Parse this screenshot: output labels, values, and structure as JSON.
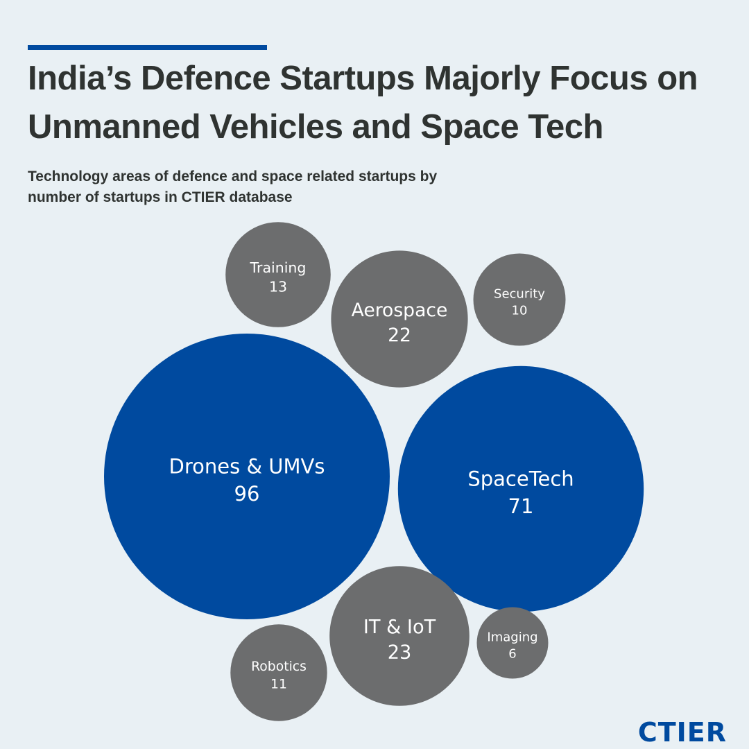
{
  "header": {
    "title_line1": "India’s Defence Startups Majorly Focus on",
    "title_line2": "Unmanned Vehicles and Space Tech",
    "subtitle_line1": "Technology areas of defence and space related startups by",
    "subtitle_line2": "number of startups in CTIER database"
  },
  "colors": {
    "background": "#e9f0f4",
    "accent": "#004a9f",
    "neutral_bubble": "#6c6d6e",
    "text_dark": "#2f3331"
  },
  "chart_data": {
    "type": "bubble",
    "title": "India’s Defence Startups Majorly Focus on Unmanned Vehicles and Space Tech",
    "subtitle": "Technology areas of defence and space related startups by number of startups in CTIER database",
    "unit": "number of startups",
    "categories": [
      "Training",
      "Aerospace",
      "Security",
      "Drones & UMVs",
      "SpaceTech",
      "IT & IoT",
      "Imaging",
      "Robotics"
    ],
    "values": [
      13,
      22,
      10,
      96,
      71,
      23,
      6,
      11
    ],
    "highlight": [
      "Drones & UMVs",
      "SpaceTech"
    ]
  },
  "brand": "CTIER"
}
